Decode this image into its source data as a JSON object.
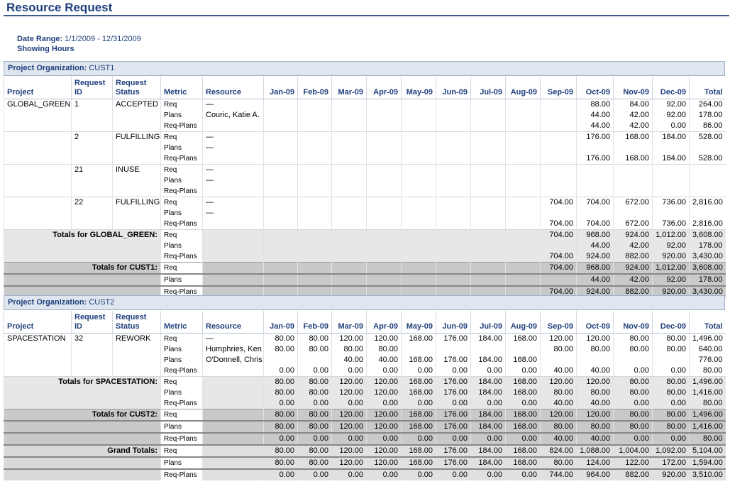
{
  "page": {
    "title": "Resource Request",
    "date_range_label": "Date Range:",
    "date_range_value": "1/1/2009 - 12/31/2009",
    "showing": "Showing Hours"
  },
  "headers": {
    "project": "Project",
    "request_id": "Request ID",
    "request_status": "Request Status",
    "metric": "Metric",
    "resource": "Resource",
    "months": [
      "Jan-09",
      "Feb-09",
      "Mar-09",
      "Apr-09",
      "May-09",
      "Jun-09",
      "Jul-09",
      "Aug-09",
      "Sep-09",
      "Oct-09",
      "Nov-09",
      "Dec-09"
    ],
    "total": "Total"
  },
  "orgs": [
    {
      "label": "Project Organization:",
      "name": "CUST1",
      "rows": [
        {
          "project": "GLOBAL_GREEN",
          "id": "1",
          "status": "ACCEPTED",
          "metric": "Req",
          "resource": "—",
          "vals": [
            "",
            "",
            "",
            "",
            "",
            "",
            "",
            "",
            "",
            "88.00",
            "84.00",
            "92.00",
            "264.00"
          ],
          "sep": true
        },
        {
          "project": "",
          "id": "",
          "status": "",
          "metric": "Plans",
          "resource": "Couric, Katie A.",
          "vals": [
            "",
            "",
            "",
            "",
            "",
            "",
            "",
            "",
            "",
            "44.00",
            "42.00",
            "92.00",
            "178.00"
          ]
        },
        {
          "project": "",
          "id": "",
          "status": "",
          "metric": "Req-Plans",
          "resource": "",
          "vals": [
            "",
            "",
            "",
            "",
            "",
            "",
            "",
            "",
            "",
            "44.00",
            "42.00",
            "0.00",
            "86.00"
          ]
        },
        {
          "project": "",
          "id": "2",
          "status": "FULFILLING",
          "metric": "Req",
          "resource": "—",
          "vals": [
            "",
            "",
            "",
            "",
            "",
            "",
            "",
            "",
            "",
            "176.00",
            "168.00",
            "184.00",
            "528.00"
          ],
          "sep": true
        },
        {
          "project": "",
          "id": "",
          "status": "",
          "metric": "Plans",
          "resource": "—",
          "vals": [
            "",
            "",
            "",
            "",
            "",
            "",
            "",
            "",
            "",
            "",
            "",
            "",
            ""
          ]
        },
        {
          "project": "",
          "id": "",
          "status": "",
          "metric": "Req-Plans",
          "resource": "",
          "vals": [
            "",
            "",
            "",
            "",
            "",
            "",
            "",
            "",
            "",
            "176.00",
            "168.00",
            "184.00",
            "528.00"
          ]
        },
        {
          "project": "",
          "id": "21",
          "status": "INUSE",
          "metric": "Req",
          "resource": "—",
          "vals": [
            "",
            "",
            "",
            "",
            "",
            "",
            "",
            "",
            "",
            "",
            "",
            "",
            ""
          ],
          "sep": true
        },
        {
          "project": "",
          "id": "",
          "status": "",
          "metric": "Plans",
          "resource": "—",
          "vals": [
            "",
            "",
            "",
            "",
            "",
            "",
            "",
            "",
            "",
            "",
            "",
            "",
            ""
          ]
        },
        {
          "project": "",
          "id": "",
          "status": "",
          "metric": "Req-Plans",
          "resource": "",
          "vals": [
            "",
            "",
            "",
            "",
            "",
            "",
            "",
            "",
            "",
            "",
            "",
            "",
            ""
          ]
        },
        {
          "project": "",
          "id": "22",
          "status": "FULFILLING",
          "metric": "Req",
          "resource": "—",
          "vals": [
            "",
            "",
            "",
            "",
            "",
            "",
            "",
            "",
            "704.00",
            "704.00",
            "672.00",
            "736.00",
            "2,816.00"
          ],
          "sep": true
        },
        {
          "project": "",
          "id": "",
          "status": "",
          "metric": "Plans",
          "resource": "—",
          "vals": [
            "",
            "",
            "",
            "",
            "",
            "",
            "",
            "",
            "",
            "",
            "",
            "",
            ""
          ]
        },
        {
          "project": "",
          "id": "",
          "status": "",
          "metric": "Req-Plans",
          "resource": "",
          "vals": [
            "",
            "",
            "",
            "",
            "",
            "",
            "",
            "",
            "704.00",
            "704.00",
            "672.00",
            "736.00",
            "2,816.00"
          ]
        }
      ],
      "project_totals": {
        "label": "Totals for GLOBAL_GREEN:",
        "rows": [
          {
            "metric": "Req",
            "vals": [
              "",
              "",
              "",
              "",
              "",
              "",
              "",
              "",
              "704.00",
              "968.00",
              "924.00",
              "1,012.00",
              "3,608.00"
            ]
          },
          {
            "metric": "Plans",
            "vals": [
              "",
              "",
              "",
              "",
              "",
              "",
              "",
              "",
              "",
              "44.00",
              "42.00",
              "92.00",
              "178.00"
            ]
          },
          {
            "metric": "Req-Plans",
            "vals": [
              "",
              "",
              "",
              "",
              "",
              "",
              "",
              "",
              "704.00",
              "924.00",
              "882.00",
              "920.00",
              "3,430.00"
            ]
          }
        ]
      },
      "org_totals": {
        "label": "Totals for CUST1:",
        "rows": [
          {
            "metric": "Req",
            "vals": [
              "",
              "",
              "",
              "",
              "",
              "",
              "",
              "",
              "704.00",
              "968.00",
              "924.00",
              "1,012.00",
              "3,608.00"
            ]
          },
          {
            "metric": "Plans",
            "vals": [
              "",
              "",
              "",
              "",
              "",
              "",
              "",
              "",
              "",
              "44.00",
              "42.00",
              "92.00",
              "178.00"
            ]
          },
          {
            "metric": "Req-Plans",
            "vals": [
              "",
              "",
              "",
              "",
              "",
              "",
              "",
              "",
              "704.00",
              "924.00",
              "882.00",
              "920.00",
              "3,430.00"
            ]
          }
        ]
      }
    },
    {
      "label": "Project Organization:",
      "name": "CUST2",
      "rows": [
        {
          "project": "SPACESTATION",
          "id": "32",
          "status": "REWORK",
          "metric": "Req",
          "resource": "—",
          "vals": [
            "80.00",
            "80.00",
            "120.00",
            "120.00",
            "168.00",
            "176.00",
            "184.00",
            "168.00",
            "120.00",
            "120.00",
            "80.00",
            "80.00",
            "1,496.00"
          ],
          "sep": true
        },
        {
          "project": "",
          "id": "",
          "status": "",
          "metric": "Plans",
          "resource": "Humphries, Ken",
          "vals": [
            "80.00",
            "80.00",
            "80.00",
            "80.00",
            "",
            "",
            "",
            "",
            "80.00",
            "80.00",
            "80.00",
            "80.00",
            "640.00"
          ]
        },
        {
          "project": "",
          "id": "",
          "status": "",
          "metric": "Plans",
          "resource": "O'Donnell, Chris",
          "vals": [
            "",
            "",
            "40.00",
            "40.00",
            "168.00",
            "176.00",
            "184.00",
            "168.00",
            "",
            "",
            "",
            "",
            "776.00"
          ]
        },
        {
          "project": "",
          "id": "",
          "status": "",
          "metric": "Req-Plans",
          "resource": "",
          "vals": [
            "0.00",
            "0.00",
            "0.00",
            "0.00",
            "0.00",
            "0.00",
            "0.00",
            "0.00",
            "40.00",
            "40.00",
            "0.00",
            "0.00",
            "80.00"
          ]
        }
      ],
      "project_totals": {
        "label": "Totals for SPACESTATION:",
        "rows": [
          {
            "metric": "Req",
            "vals": [
              "80.00",
              "80.00",
              "120.00",
              "120.00",
              "168.00",
              "176.00",
              "184.00",
              "168.00",
              "120.00",
              "120.00",
              "80.00",
              "80.00",
              "1,496.00"
            ]
          },
          {
            "metric": "Plans",
            "vals": [
              "80.00",
              "80.00",
              "120.00",
              "120.00",
              "168.00",
              "176.00",
              "184.00",
              "168.00",
              "80.00",
              "80.00",
              "80.00",
              "80.00",
              "1,416.00"
            ]
          },
          {
            "metric": "Req-Plans",
            "vals": [
              "0.00",
              "0.00",
              "0.00",
              "0.00",
              "0.00",
              "0.00",
              "0.00",
              "0.00",
              "40.00",
              "40.00",
              "0.00",
              "0.00",
              "80.00"
            ]
          }
        ]
      },
      "org_totals": {
        "label": "Totals for CUST2:",
        "rows": [
          {
            "metric": "Req",
            "vals": [
              "80.00",
              "80.00",
              "120.00",
              "120.00",
              "168.00",
              "176.00",
              "184.00",
              "168.00",
              "120.00",
              "120.00",
              "80.00",
              "80.00",
              "1,496.00"
            ]
          },
          {
            "metric": "Plans",
            "vals": [
              "80.00",
              "80.00",
              "120.00",
              "120.00",
              "168.00",
              "176.00",
              "184.00",
              "168.00",
              "80.00",
              "80.00",
              "80.00",
              "80.00",
              "1,416.00"
            ]
          },
          {
            "metric": "Req-Plans",
            "vals": [
              "0.00",
              "0.00",
              "0.00",
              "0.00",
              "0.00",
              "0.00",
              "0.00",
              "0.00",
              "40.00",
              "40.00",
              "0.00",
              "0.00",
              "80.00"
            ]
          }
        ]
      }
    }
  ],
  "grand_totals": {
    "label": "Grand Totals:",
    "rows": [
      {
        "metric": "Req",
        "vals": [
          "80.00",
          "80.00",
          "120.00",
          "120.00",
          "168.00",
          "176.00",
          "184.00",
          "168.00",
          "824.00",
          "1,088.00",
          "1,004.00",
          "1,092.00",
          "5,104.00"
        ]
      },
      {
        "metric": "Plans",
        "vals": [
          "80.00",
          "80.00",
          "120.00",
          "120.00",
          "168.00",
          "176.00",
          "184.00",
          "168.00",
          "80.00",
          "124.00",
          "122.00",
          "172.00",
          "1,594.00"
        ]
      },
      {
        "metric": "Req-Plans",
        "vals": [
          "0.00",
          "0.00",
          "0.00",
          "0.00",
          "0.00",
          "0.00",
          "0.00",
          "0.00",
          "744.00",
          "964.00",
          "882.00",
          "920.00",
          "3,510.00"
        ]
      }
    ]
  }
}
